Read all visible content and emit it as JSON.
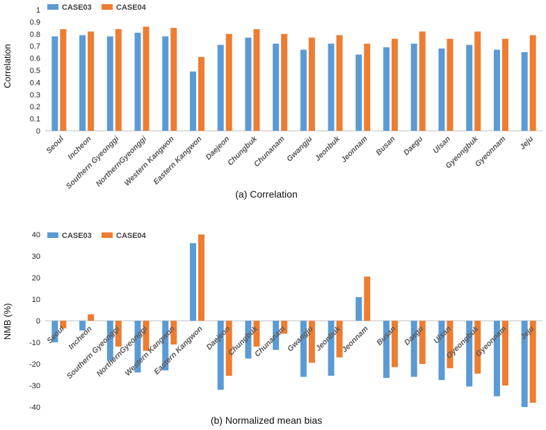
{
  "colors": {
    "case03": "#5b9bd5",
    "case04": "#ed7d31",
    "axis": "#bfbfbf"
  },
  "chart_data": [
    {
      "type": "bar",
      "title": "",
      "caption": "(a) Correlation",
      "ylabel": "Correlation",
      "xlabel": "",
      "ylim": [
        0,
        1
      ],
      "yticks": [
        0,
        0.1,
        0.2,
        0.3,
        0.4,
        0.5,
        0.6,
        0.7,
        0.8,
        0.9,
        1
      ],
      "ytick_labels": [
        "0",
        "0.1",
        "0.2",
        "0.3",
        "0.4",
        "0.5",
        "0.6",
        "0.7",
        "0.8",
        "0.9",
        "1"
      ],
      "legend": {
        "position": "top-left"
      },
      "categories": [
        "Seoul",
        "Incheon",
        "Southern Gyeonggi",
        "NorthernGyeonggi",
        "Western Kangwon",
        "Eastern Kangwon",
        "Daejeon",
        "Chungbuk",
        "Chunanam",
        "Gwangju",
        "Jeonbuk",
        "Jeonnam",
        "Busan",
        "Daegu",
        "Ulsan",
        "Gyeongbuk",
        "Gyeonnam",
        "Jeju"
      ],
      "series": [
        {
          "name": "CASE03",
          "values": [
            0.78,
            0.79,
            0.78,
            0.81,
            0.78,
            0.49,
            0.71,
            0.77,
            0.72,
            0.67,
            0.72,
            0.63,
            0.69,
            0.72,
            0.68,
            0.71,
            0.67,
            0.65
          ]
        },
        {
          "name": "CASE04",
          "values": [
            0.84,
            0.82,
            0.84,
            0.86,
            0.85,
            0.61,
            0.8,
            0.84,
            0.8,
            0.77,
            0.79,
            0.72,
            0.76,
            0.82,
            0.76,
            0.82,
            0.76,
            0.79
          ]
        }
      ]
    },
    {
      "type": "bar",
      "title": "",
      "caption": "(b) Normalized mean bias",
      "ylabel": "NMB (%)",
      "xlabel": "",
      "ylim": [
        -40,
        40
      ],
      "yticks": [
        -40,
        -30,
        -20,
        -10,
        0,
        10,
        20,
        30,
        40
      ],
      "ytick_labels": [
        "-40",
        "-30",
        "-20",
        "-10",
        "0",
        "10",
        "20",
        "30",
        "40"
      ],
      "legend": {
        "position": "top-left"
      },
      "categories": [
        "Seoul",
        "Incheon",
        "Southern Gyeonggi",
        "NorthernGyeonggi",
        "Western Kangwon",
        "Eastern Kangwon",
        "Daejeon",
        "Chungbuk",
        "Chunanam",
        "Gwangju",
        "Jeonbuk",
        "Jeonnam",
        "Busan",
        "Daegu",
        "Ulsan",
        "Gyeongbuk",
        "Gyeonnam",
        "Jeju"
      ],
      "series": [
        {
          "name": "CASE03",
          "values": [
            -10,
            -4.5,
            -18.5,
            -24,
            -23,
            36,
            -32,
            -17.5,
            -13.5,
            -26,
            -25.5,
            11,
            -26.5,
            -26,
            -27.5,
            -30.5,
            -35,
            -40
          ]
        },
        {
          "name": "CASE04",
          "values": [
            -3.5,
            3,
            -12,
            -14,
            -11,
            40,
            -25.5,
            -12,
            -6,
            -19.5,
            -17,
            20.5,
            -21.5,
            -20,
            -22,
            -24.5,
            -30,
            -38
          ]
        }
      ]
    }
  ]
}
